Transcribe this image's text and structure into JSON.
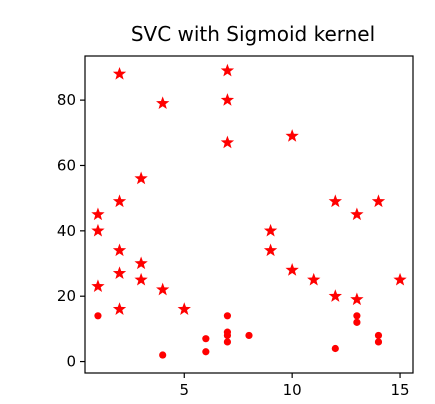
{
  "chart_data": {
    "type": "scatter",
    "title": "SVC with Sigmoid kernel",
    "xlabel": "",
    "ylabel": "",
    "xlim": [
      0.4,
      15.6
    ],
    "ylim": [
      -3.5,
      93.5
    ],
    "xticks": [
      5,
      10,
      15
    ],
    "yticks": [
      0,
      20,
      40,
      60,
      80
    ],
    "grid": false,
    "series": [
      {
        "marker": "star",
        "color": "#ff0000",
        "points": [
          [
            1,
            45
          ],
          [
            1,
            40
          ],
          [
            1,
            23
          ],
          [
            2,
            88
          ],
          [
            2,
            49
          ],
          [
            2,
            34
          ],
          [
            2,
            27
          ],
          [
            2,
            16
          ],
          [
            3,
            56
          ],
          [
            3,
            30
          ],
          [
            3,
            25
          ],
          [
            4,
            79
          ],
          [
            4,
            22
          ],
          [
            5,
            16
          ],
          [
            7,
            89
          ],
          [
            7,
            80
          ],
          [
            7,
            67
          ],
          [
            9,
            40
          ],
          [
            9,
            34
          ],
          [
            10,
            69
          ],
          [
            10,
            28
          ],
          [
            11,
            25
          ],
          [
            12,
            49
          ],
          [
            12,
            20
          ],
          [
            13,
            45
          ],
          [
            13,
            19
          ],
          [
            14,
            49
          ],
          [
            15,
            25
          ]
        ]
      },
      {
        "marker": "circle",
        "color": "#ff0000",
        "points": [
          [
            1,
            14
          ],
          [
            4,
            2
          ],
          [
            6,
            7
          ],
          [
            6,
            3
          ],
          [
            7,
            14
          ],
          [
            7,
            9
          ],
          [
            7,
            8
          ],
          [
            7,
            6
          ],
          [
            8,
            8
          ],
          [
            12,
            4
          ],
          [
            13,
            14
          ],
          [
            13,
            12
          ],
          [
            14,
            8
          ],
          [
            14,
            6
          ]
        ]
      }
    ]
  }
}
